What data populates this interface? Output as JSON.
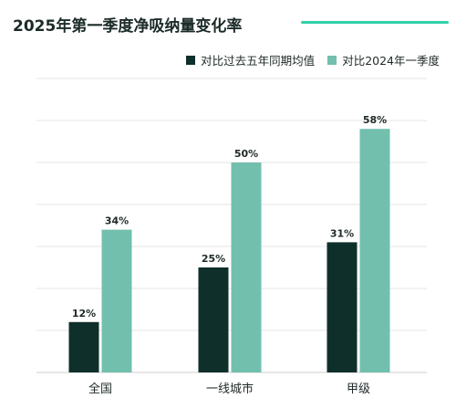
{
  "chart_data": {
    "type": "bar",
    "title": "2025年第一季度净吸纳量变化率",
    "categories": [
      "全国",
      "一线城市",
      "甲级"
    ],
    "series": [
      {
        "name": "对比过去五年同期均值",
        "values": [
          12,
          25,
          31
        ],
        "labels": [
          "12%",
          "25%",
          "31%"
        ],
        "color": "#0f2f2b"
      },
      {
        "name": "对比2024年一季度",
        "values": [
          34,
          50,
          58
        ],
        "labels": [
          "34%",
          "50%",
          "58%"
        ],
        "color": "#72bfae"
      }
    ],
    "ylim": [
      0,
      70
    ],
    "grid": true,
    "legend_position": "top-right",
    "accent_color": "#2fd1a9"
  }
}
